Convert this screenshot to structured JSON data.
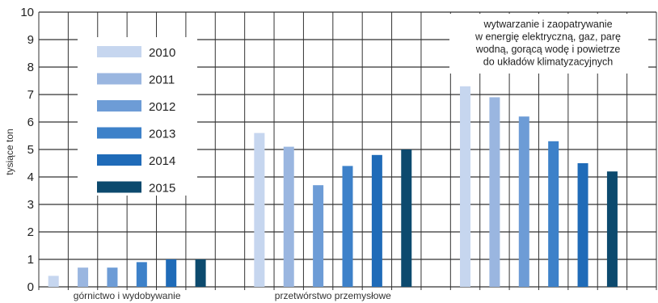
{
  "chart_data": {
    "type": "bar",
    "ylabel": "tysiące ton",
    "ylim": [
      0,
      10
    ],
    "yticks": [
      0,
      1,
      2,
      3,
      4,
      5,
      6,
      7,
      8,
      9,
      10
    ],
    "grid": true,
    "legend_position": "top-left",
    "categories": [
      "górnictwo i wydobywanie",
      "przetwórstwo przemysłowe",
      ""
    ],
    "category_note_lines": [
      "wytwarzanie i zaopatrywanie",
      "w energię elektryczną, gaz, parę",
      "wodną, gorącą wodę i powietrze",
      "do układów klimatyzacyjnych"
    ],
    "series": [
      {
        "name": "2010",
        "color": "#c6d6ef",
        "values": [
          0.4,
          5.6,
          7.3
        ]
      },
      {
        "name": "2011",
        "color": "#9ab6e0",
        "values": [
          0.7,
          5.1,
          6.9
        ]
      },
      {
        "name": "2012",
        "color": "#6d9cd6",
        "values": [
          0.7,
          3.7,
          6.2
        ]
      },
      {
        "name": "2013",
        "color": "#3d81c9",
        "values": [
          0.9,
          4.4,
          5.3
        ]
      },
      {
        "name": "2014",
        "color": "#1f6bb8",
        "values": [
          1.0,
          4.8,
          4.5
        ]
      },
      {
        "name": "2015",
        "color": "#0c4a6e",
        "values": [
          1.0,
          5.0,
          4.2
        ]
      }
    ]
  }
}
